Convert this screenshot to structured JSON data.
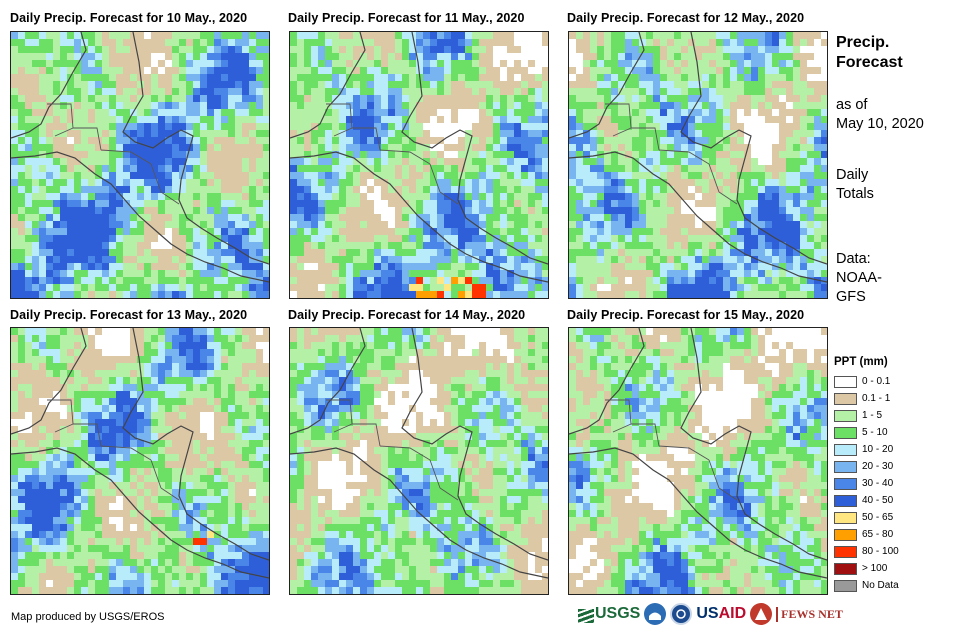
{
  "panels": [
    {
      "title": "Daily Precip. Forecast for 10 May., 2020",
      "wetness": 0.72,
      "seed": 11
    },
    {
      "title": "Daily Precip. Forecast for 11 May., 2020",
      "wetness": 0.62,
      "seed": 23
    },
    {
      "title": "Daily Precip. Forecast for 12 May., 2020",
      "wetness": 0.6,
      "seed": 37
    },
    {
      "title": "Daily Precip. Forecast for 13 May., 2020",
      "wetness": 0.58,
      "seed": 41
    },
    {
      "title": "Daily Precip. Forecast for 14 May., 2020",
      "wetness": 0.45,
      "seed": 53
    },
    {
      "title": "Daily Precip. Forecast for 15 May., 2020",
      "wetness": 0.42,
      "seed": 67
    }
  ],
  "side_info": {
    "title_line1": "Precip.",
    "title_line2": "Forecast",
    "asof_line1": "as of",
    "asof_line2": "May 10, 2020",
    "daily_line1": "Daily",
    "daily_line2": "Totals",
    "data_line1": "Data:",
    "data_line2": "NOAA-",
    "data_line3": "GFS"
  },
  "legend": {
    "title": "PPT (mm)",
    "items": [
      {
        "label": "0 - 0.1",
        "color": "#ffffff"
      },
      {
        "label": "0.1 - 1",
        "color": "#ddc8a6"
      },
      {
        "label": "1 - 5",
        "color": "#b4f0a6"
      },
      {
        "label": "5 - 10",
        "color": "#6ce064"
      },
      {
        "label": "10 - 20",
        "color": "#b8ecfa"
      },
      {
        "label": "20 - 30",
        "color": "#78b4f0"
      },
      {
        "label": "30 - 40",
        "color": "#4a86e8"
      },
      {
        "label": "40 - 50",
        "color": "#2f5fd8"
      },
      {
        "label": "50 - 65",
        "color": "#ffe680"
      },
      {
        "label": "65 - 80",
        "color": "#ff9f00"
      },
      {
        "label": "80 - 100",
        "color": "#ff3200"
      },
      {
        "label": "> 100",
        "color": "#a01010"
      },
      {
        "label": "No Data",
        "color": "#999999"
      }
    ]
  },
  "credit": "Map produced by USGS/EROS",
  "logos": {
    "usgs": "USGS",
    "usaid_a": "US",
    "usaid_b": "AID",
    "fews": "FEWS NET"
  }
}
